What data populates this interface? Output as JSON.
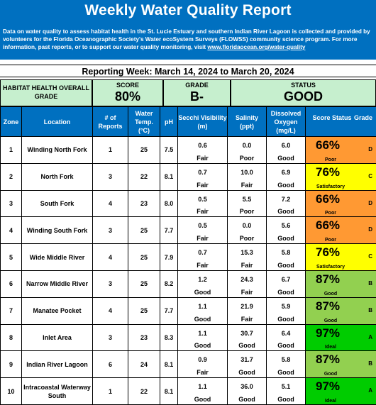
{
  "header": {
    "title": "Weekly Water Quality Report",
    "description": "Data on water quality to assess habitat health in the St. Lucie Estuary and southern Indian River Lagoon is collected and provided by volunteers for the Florida Oceanographic Society's Water ecoSystem Surveys (FLOWSS) community science program.  For more information, past reports, or to support our water quality monitoring, visit ",
    "link": "www.floridaocean.org/water-quality"
  },
  "reporting_week": "Reporting Week: March 14, 2024 to March 20, 2024",
  "summary": {
    "habitat_label": "HABITAT HEALTH OVERALL GRADE",
    "score_label": "SCORE",
    "score_value": "80%",
    "grade_label": "GRADE",
    "grade_value": "B-",
    "status_label": "STATUS",
    "status_value": "GOOD"
  },
  "columns": {
    "zone": "Zone",
    "location": "Location",
    "reports": "# of Reports",
    "temp": "Water Temp. (°C)",
    "ph": "pH",
    "secchi": "Secchi Visibility (m)",
    "salinity": "Salinity (ppt)",
    "oxygen": "Dissolved Oxygen (mg/L)",
    "score_status": "Score Status",
    "grade": "Grade"
  },
  "colors": {
    "header_blue": "#0070c0",
    "summary_green": "#c6efce",
    "Poor": "#ff9933",
    "Satisfactory": "#ffff00",
    "Good": "#92d050",
    "Ideal": "#00cc00"
  },
  "rows": [
    {
      "zone": "1",
      "location": "Winding North Fork",
      "reports": "1",
      "temp": "25",
      "ph": "7.5",
      "secchi": "0.6",
      "secchi_rating": "Fair",
      "salinity": "0.0",
      "salinity_rating": "Poor",
      "oxygen": "6.0",
      "oxygen_rating": "Good",
      "score": "66%",
      "status": "Poor",
      "grade": "D"
    },
    {
      "zone": "2",
      "location": "North Fork",
      "reports": "3",
      "temp": "22",
      "ph": "8.1",
      "secchi": "0.7",
      "secchi_rating": "Fair",
      "salinity": "10.0",
      "salinity_rating": "Fair",
      "oxygen": "6.9",
      "oxygen_rating": "Good",
      "score": "76%",
      "status": "Satisfactory",
      "grade": "C"
    },
    {
      "zone": "3",
      "location": "South Fork",
      "reports": "4",
      "temp": "23",
      "ph": "8.0",
      "secchi": "0.5",
      "secchi_rating": "Fair",
      "salinity": "5.5",
      "salinity_rating": "Poor",
      "oxygen": "7.2",
      "oxygen_rating": "Good",
      "score": "66%",
      "status": "Poor",
      "grade": "D"
    },
    {
      "zone": "4",
      "location": "Winding South Fork",
      "reports": "3",
      "temp": "25",
      "ph": "7.7",
      "secchi": "0.5",
      "secchi_rating": "Fair",
      "salinity": "0.0",
      "salinity_rating": "Poor",
      "oxygen": "5.6",
      "oxygen_rating": "Good",
      "score": "66%",
      "status": "Poor",
      "grade": "D"
    },
    {
      "zone": "5",
      "location": "Wide Middle River",
      "reports": "4",
      "temp": "25",
      "ph": "7.9",
      "secchi": "0.7",
      "secchi_rating": "Fair",
      "salinity": "15.3",
      "salinity_rating": "Fair",
      "oxygen": "5.8",
      "oxygen_rating": "Good",
      "score": "76%",
      "status": "Satisfactory",
      "grade": "C"
    },
    {
      "zone": "6",
      "location": "Narrow Middle River",
      "reports": "3",
      "temp": "25",
      "ph": "8.2",
      "secchi": "1.2",
      "secchi_rating": "Good",
      "salinity": "24.3",
      "salinity_rating": "Fair",
      "oxygen": "6.7",
      "oxygen_rating": "Good",
      "score": "87%",
      "status": "Good",
      "grade": "B"
    },
    {
      "zone": "7",
      "location": "Manatee Pocket",
      "reports": "4",
      "temp": "25",
      "ph": "7.7",
      "secchi": "1.1",
      "secchi_rating": "Good",
      "salinity": "21.9",
      "salinity_rating": "Fair",
      "oxygen": "5.9",
      "oxygen_rating": "Good",
      "score": "87%",
      "status": "Good",
      "grade": "B"
    },
    {
      "zone": "8",
      "location": "Inlet Area",
      "reports": "3",
      "temp": "23",
      "ph": "8.3",
      "secchi": "1.1",
      "secchi_rating": "Good",
      "salinity": "30.7",
      "salinity_rating": "Good",
      "oxygen": "6.4",
      "oxygen_rating": "Good",
      "score": "97%",
      "status": "Ideal",
      "grade": "A"
    },
    {
      "zone": "9",
      "location": "Indian River Lagoon",
      "reports": "6",
      "temp": "24",
      "ph": "8.1",
      "secchi": "0.9",
      "secchi_rating": "Fair",
      "salinity": "31.7",
      "salinity_rating": "Good",
      "oxygen": "5.8",
      "oxygen_rating": "Good",
      "score": "87%",
      "status": "Good",
      "grade": "B"
    },
    {
      "zone": "10",
      "location": "Intracoastal Waterway South",
      "reports": "1",
      "temp": "22",
      "ph": "8.1",
      "secchi": "1.1",
      "secchi_rating": "Good",
      "salinity": "36.0",
      "salinity_rating": "Good",
      "oxygen": "5.1",
      "oxygen_rating": "Good",
      "score": "97%",
      "status": "Ideal",
      "grade": "A"
    }
  ]
}
